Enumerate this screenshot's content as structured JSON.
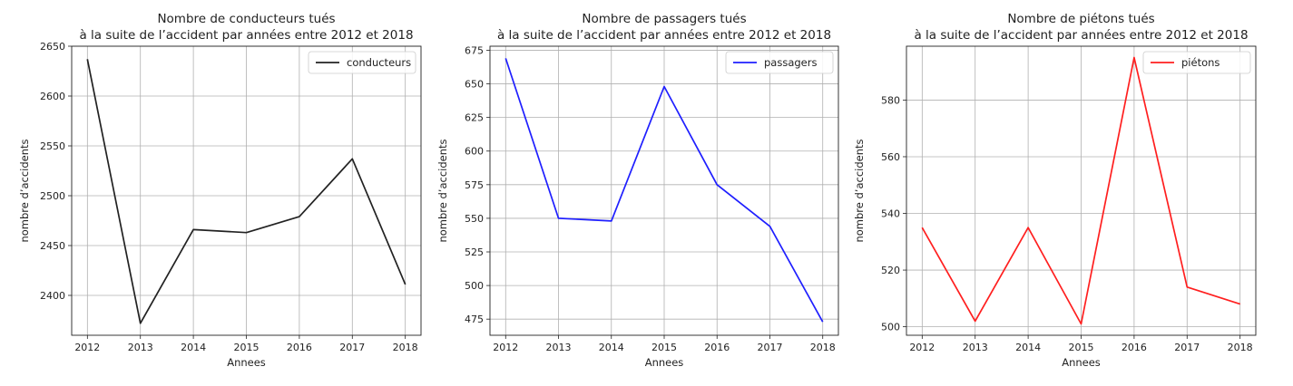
{
  "chart_data": [
    {
      "type": "line",
      "title": "Nombre de conducteurs tués",
      "subtitle": "à la suite de l’accident par années entre 2012 et 2018",
      "xlabel": "Annees",
      "ylabel": "nombre d’accidents",
      "x": [
        2012,
        2013,
        2014,
        2015,
        2016,
        2017,
        2018
      ],
      "xticks": [
        "2012",
        "2013",
        "2014",
        "2015",
        "2016",
        "2017",
        "2018"
      ],
      "yticks": [
        2400,
        2450,
        2500,
        2550,
        2600,
        2650
      ],
      "ylim": [
        2360,
        2650
      ],
      "grid": true,
      "legend_position": "top-right",
      "series": [
        {
          "name": "conducteurs",
          "color": "#222222",
          "values": [
            2637,
            2372,
            2466,
            2463,
            2479,
            2537,
            2411
          ]
        }
      ]
    },
    {
      "type": "line",
      "title": "Nombre de passagers tués",
      "subtitle": "à la suite de l’accident par années entre 2012 et 2018",
      "xlabel": "Annees",
      "ylabel": "nombre d’accidents",
      "x": [
        2012,
        2013,
        2014,
        2015,
        2016,
        2017,
        2018
      ],
      "xticks": [
        "2012",
        "2013",
        "2014",
        "2015",
        "2016",
        "2017",
        "2018"
      ],
      "yticks": [
        475,
        500,
        525,
        550,
        575,
        600,
        625,
        650,
        675
      ],
      "ylim": [
        463,
        678
      ],
      "grid": true,
      "legend_position": "top-right",
      "series": [
        {
          "name": "passagers",
          "color": "#1f1fff",
          "values": [
            669,
            550,
            548,
            648,
            575,
            544,
            473
          ]
        }
      ]
    },
    {
      "type": "line",
      "title": "Nombre de piétons tués",
      "subtitle": "à la suite de l’accident par années entre 2012 et 2018",
      "xlabel": "Annees",
      "ylabel": "nombre d’accidents",
      "x": [
        2012,
        2013,
        2014,
        2015,
        2016,
        2017,
        2018
      ],
      "xticks": [
        "2012",
        "2013",
        "2014",
        "2015",
        "2016",
        "2017",
        "2018"
      ],
      "yticks": [
        500,
        520,
        540,
        560,
        580
      ],
      "ylim": [
        497,
        599
      ],
      "grid": true,
      "legend_position": "top-right",
      "series": [
        {
          "name": "piétons",
          "color": "#ff1f1f",
          "values": [
            535,
            502,
            535,
            501,
            595,
            514,
            508
          ]
        }
      ]
    }
  ]
}
